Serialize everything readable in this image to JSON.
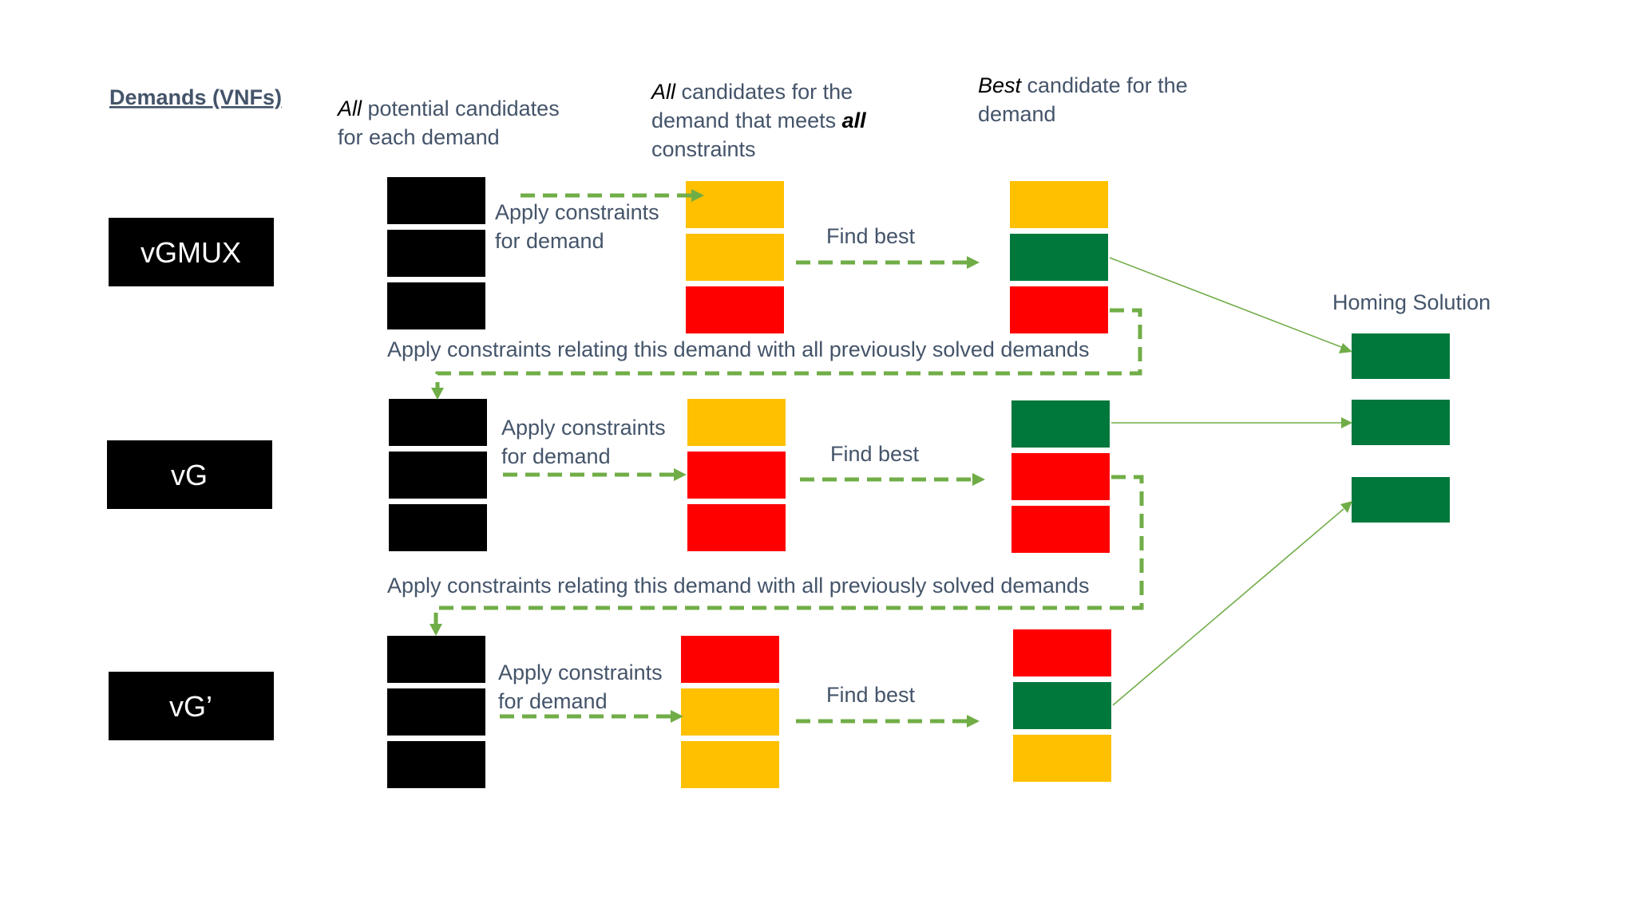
{
  "headings": {
    "demands": "Demands (VNFs)",
    "col1_line1_em": "All",
    "col1_line1_rest": " potential candidates",
    "col1_line2": "for each demand",
    "col2_line1_em": "All",
    "col2_line1_rest": " candidates for the",
    "col2_line2_a": "demand that meets ",
    "col2_line2_em": "all",
    "col2_line3": "constraints",
    "col3_line1_em": "Best",
    "col3_line1_rest": " candidate for the",
    "col3_line2": "demand",
    "homing": "Homing Solution"
  },
  "demands": [
    {
      "label": "vGMUX",
      "apply_line1": "Apply constraints",
      "apply_line2": "for demand",
      "find_best": "Find best",
      "filtered": [
        "#ffc000",
        "#ffc000",
        "#ff0000"
      ],
      "best": [
        "#ffc000",
        "#00783c",
        "#ff0000"
      ]
    },
    {
      "label": "vG",
      "apply_line1": "Apply constraints",
      "apply_line2": "for demand",
      "find_best": "Find best",
      "filtered": [
        "#ffc000",
        "#ff0000",
        "#ff0000"
      ],
      "best": [
        "#00783c",
        "#ff0000",
        "#ff0000"
      ]
    },
    {
      "label": "vG’",
      "apply_line1": "Apply constraints",
      "apply_line2": "for demand",
      "find_best": "Find best",
      "filtered": [
        "#ff0000",
        "#ffc000",
        "#ffc000"
      ],
      "best": [
        "#ff0000",
        "#00783c",
        "#ffc000"
      ]
    }
  ],
  "relating_text_1": "Apply constraints relating this demand with all previously solved demands",
  "relating_text_2": "Apply constraints relating this demand with all previously solved demands",
  "colors": {
    "candidate_black": "#000000",
    "feasible_yellow": "#ffc000",
    "infeasible_red": "#ff0000",
    "best_green": "#00783c",
    "arrow_green": "#70ad47",
    "text_slate": "#44546a"
  }
}
